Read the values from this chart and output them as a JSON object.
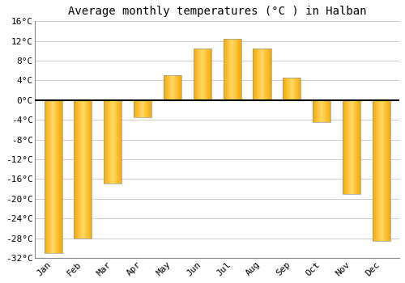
{
  "title": "Average monthly temperatures (°C ) in Halban",
  "months": [
    "Jan",
    "Feb",
    "Mar",
    "Apr",
    "May",
    "Jun",
    "Jul",
    "Aug",
    "Sep",
    "Oct",
    "Nov",
    "Dec"
  ],
  "temperatures": [
    -31,
    -28,
    -17,
    -3.5,
    5,
    10.5,
    12.5,
    10.5,
    4.5,
    -4.5,
    -19,
    -28.5
  ],
  "ylim": [
    -32,
    16
  ],
  "yticks": [
    -32,
    -28,
    -24,
    -20,
    -16,
    -12,
    -8,
    -4,
    0,
    4,
    8,
    12,
    16
  ],
  "bar_color_outer": "#F5A800",
  "bar_color_inner": "#FFD966",
  "background_color": "#ffffff",
  "grid_color": "#cccccc",
  "zero_line_color": "#000000",
  "title_fontsize": 10,
  "tick_fontsize": 8
}
